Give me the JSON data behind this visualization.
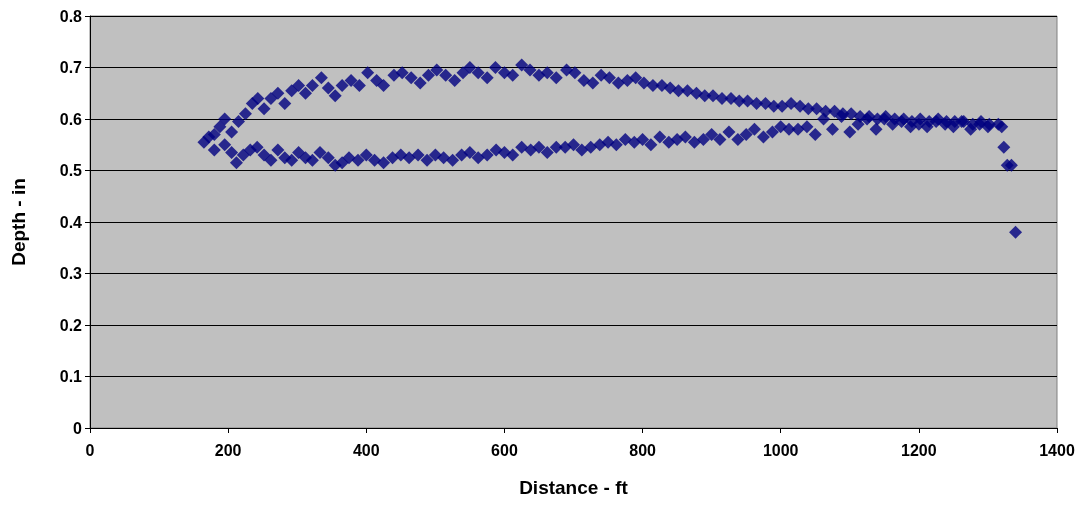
{
  "chart_data": {
    "type": "scatter",
    "xlabel": "Distance - ft",
    "ylabel": "Depth - in",
    "xlim": [
      0,
      1400
    ],
    "xticks": [
      0,
      200,
      400,
      600,
      800,
      1000,
      1200,
      1400
    ],
    "ylim": [
      0,
      0.8
    ],
    "yticks": [
      0,
      0.1,
      0.2,
      0.3,
      0.4,
      0.5,
      0.6,
      0.7,
      0.8
    ],
    "grid": "y",
    "marker": "diamond",
    "series": [
      {
        "color": "#000080",
        "x": [
          165,
          172,
          180,
          188,
          195,
          205,
          215,
          225,
          235,
          243,
          252,
          262,
          272,
          282,
          292,
          302,
          312,
          322,
          335,
          345,
          355,
          365,
          378,
          390,
          402,
          415,
          425,
          440,
          452,
          465,
          478,
          490,
          502,
          515,
          528,
          540,
          550,
          562,
          575,
          587,
          600,
          612,
          625,
          637,
          650,
          662,
          675,
          690,
          702,
          715,
          728,
          740,
          752,
          765,
          778,
          790,
          802,
          815,
          828,
          840,
          852,
          865,
          878,
          890,
          902,
          915,
          928,
          940,
          952,
          965,
          978,
          990,
          1002,
          1015,
          1028,
          1040,
          1052,
          1065,
          1078,
          1090,
          1102,
          1115,
          1128,
          1140,
          1152,
          1165,
          1178,
          1190,
          1202,
          1215,
          1228,
          1240,
          1252,
          1265,
          1278,
          1290,
          1302,
          1315,
          1320,
          1323,
          1328,
          1334,
          1340
        ],
        "values": [
          0.555,
          0.565,
          0.57,
          0.585,
          0.6,
          0.575,
          0.595,
          0.61,
          0.63,
          0.64,
          0.62,
          0.64,
          0.65,
          0.63,
          0.655,
          0.665,
          0.65,
          0.665,
          0.68,
          0.66,
          0.645,
          0.665,
          0.675,
          0.665,
          0.69,
          0.675,
          0.665,
          0.685,
          0.69,
          0.68,
          0.67,
          0.685,
          0.695,
          0.685,
          0.675,
          0.69,
          0.7,
          0.69,
          0.68,
          0.7,
          0.69,
          0.685,
          0.705,
          0.695,
          0.685,
          0.69,
          0.68,
          0.695,
          0.69,
          0.675,
          0.67,
          0.685,
          0.68,
          0.67,
          0.675,
          0.68,
          0.67,
          0.665,
          0.665,
          0.66,
          0.655,
          0.655,
          0.65,
          0.645,
          0.645,
          0.64,
          0.64,
          0.635,
          0.635,
          0.63,
          0.63,
          0.625,
          0.625,
          0.63,
          0.625,
          0.62,
          0.62,
          0.615,
          0.615,
          0.61,
          0.61,
          0.605,
          0.605,
          0.6,
          0.605,
          0.6,
          0.6,
          0.595,
          0.6,
          0.595,
          0.6,
          0.595,
          0.595,
          0.595,
          0.59,
          0.595,
          0.59,
          0.59,
          0.585,
          0.545,
          0.51,
          0.51,
          0.38
        ]
      },
      {
        "color": "#000080",
        "x": [
          180,
          195,
          205,
          212,
          222,
          232,
          242,
          252,
          262,
          272,
          282,
          292,
          302,
          312,
          322,
          333,
          345,
          355,
          365,
          375,
          388,
          400,
          412,
          425,
          438,
          450,
          462,
          475,
          488,
          500,
          512,
          525,
          538,
          550,
          562,
          575,
          588,
          600,
          612,
          625,
          638,
          650,
          662,
          675,
          688,
          700,
          712,
          725,
          738,
          750,
          762,
          775,
          788,
          800,
          812,
          825,
          838,
          850,
          862,
          875,
          888,
          900,
          912,
          925,
          938,
          950,
          962,
          975,
          988,
          1000,
          1012,
          1025,
          1038,
          1050,
          1062,
          1075,
          1088,
          1100,
          1112,
          1125,
          1138,
          1150,
          1162,
          1175,
          1188,
          1200,
          1212,
          1225,
          1238,
          1250,
          1262,
          1275,
          1288,
          1300
        ],
        "values": [
          0.54,
          0.55,
          0.535,
          0.515,
          0.53,
          0.54,
          0.545,
          0.53,
          0.52,
          0.54,
          0.525,
          0.52,
          0.535,
          0.525,
          0.52,
          0.535,
          0.525,
          0.51,
          0.515,
          0.525,
          0.52,
          0.53,
          0.52,
          0.515,
          0.525,
          0.53,
          0.525,
          0.53,
          0.52,
          0.53,
          0.525,
          0.52,
          0.53,
          0.535,
          0.525,
          0.53,
          0.54,
          0.535,
          0.53,
          0.545,
          0.54,
          0.545,
          0.535,
          0.545,
          0.545,
          0.55,
          0.54,
          0.545,
          0.55,
          0.555,
          0.55,
          0.56,
          0.555,
          0.56,
          0.55,
          0.565,
          0.555,
          0.56,
          0.565,
          0.555,
          0.56,
          0.57,
          0.56,
          0.575,
          0.56,
          0.57,
          0.58,
          0.565,
          0.575,
          0.585,
          0.58,
          0.58,
          0.585,
          0.57,
          0.6,
          0.58,
          0.605,
          0.575,
          0.59,
          0.6,
          0.58,
          0.6,
          0.59,
          0.595,
          0.585,
          0.59,
          0.585,
          0.595,
          0.59,
          0.585,
          0.595,
          0.58,
          0.59,
          0.585
        ]
      }
    ]
  }
}
